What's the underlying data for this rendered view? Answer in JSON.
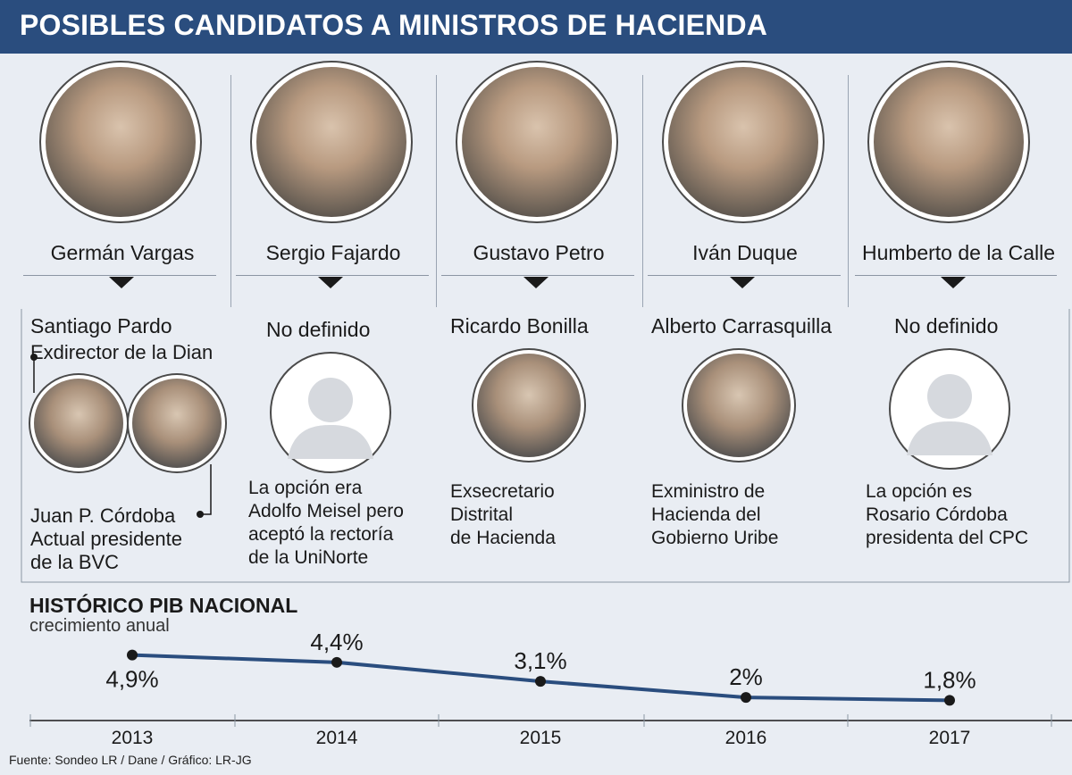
{
  "title": "POSIBLES CANDIDATOS A MINISTROS DE HACIENDA",
  "candidates": [
    {
      "name": "Germán Vargas",
      "minister_name": "Santiago Pardo",
      "minister_role": "Exdirector de la Dian",
      "alt_name": "Juan P. Córdoba",
      "alt_role_1": "Actual presidente",
      "alt_role_2": "de la BVC"
    },
    {
      "name": "Sergio Fajardo",
      "minister_name": "No definido",
      "desc": [
        "La opción era",
        "Adolfo Meisel pero",
        "aceptó la rectoría",
        "de la UniNorte"
      ]
    },
    {
      "name": "Gustavo Petro",
      "minister_name": "Ricardo Bonilla",
      "desc": [
        "Exsecretario",
        "Distrital",
        "de Hacienda"
      ]
    },
    {
      "name": "Iván Duque",
      "minister_name": "Alberto Carrasquilla",
      "desc": [
        "Exministro de",
        "Hacienda del",
        "Gobierno Uribe"
      ]
    },
    {
      "name": "Humberto de la Calle",
      "minister_name": "No definido",
      "desc": [
        "La opción es",
        "Rosario Córdoba",
        "presidenta del CPC"
      ]
    }
  ],
  "chart_data": {
    "type": "line",
    "title": "HISTÓRICO PIB NACIONAL",
    "subtitle": "crecimiento anual",
    "categories": [
      "2013",
      "2014",
      "2015",
      "2016",
      "2017"
    ],
    "values": [
      4.9,
      4.4,
      3.1,
      2.0,
      1.8
    ],
    "labels": [
      "4,9%",
      "4,4%",
      "3,1%",
      "2%",
      "1,8%"
    ],
    "line_color": "#2a4d7e",
    "grid": false
  },
  "source": "Fuente: Sondeo LR / Dane / Gráfico: LR-JG",
  "colors": {
    "header": "#2a4d7e",
    "background": "#e9edf3"
  }
}
